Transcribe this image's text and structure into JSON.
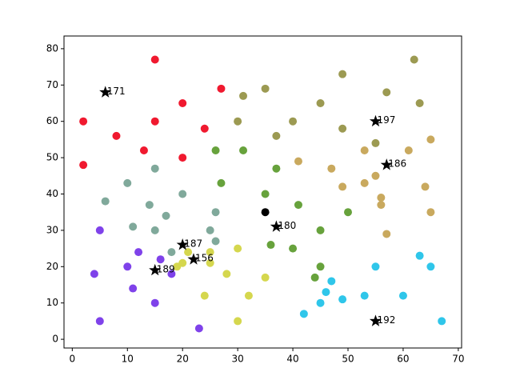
{
  "chart_data": {
    "type": "scatter",
    "xlim": [
      -1.5,
      70.6
    ],
    "ylim": [
      -2.4,
      83.5
    ],
    "xticks": [
      0,
      10,
      20,
      30,
      40,
      50,
      60,
      70
    ],
    "yticks": [
      0,
      10,
      20,
      30,
      40,
      50,
      60,
      70,
      80
    ],
    "series": [
      {
        "color": "#f0192f",
        "x": [
          15,
          27,
          20,
          2,
          15,
          24,
          8,
          13,
          20,
          2
        ],
        "y": [
          77,
          69,
          65,
          60,
          60,
          58,
          56,
          52,
          50,
          48
        ]
      },
      {
        "color": "#9c9a52",
        "x": [
          62,
          49,
          35,
          31,
          57,
          45,
          63,
          30,
          40,
          49,
          37,
          55
        ],
        "y": [
          77,
          73,
          69,
          67,
          68,
          65,
          65,
          60,
          60,
          58,
          56,
          54
        ]
      },
      {
        "color": "#c9a95e",
        "x": [
          41,
          47,
          53,
          61,
          65,
          55,
          53,
          49,
          64,
          56,
          56,
          65,
          57
        ],
        "y": [
          49,
          47,
          52,
          52,
          55,
          45,
          43,
          42,
          42,
          39,
          37,
          35,
          29
        ]
      },
      {
        "color": "#67a23c",
        "x": [
          26,
          31,
          37,
          27,
          35,
          41,
          50,
          45,
          36,
          40,
          45,
          44
        ],
        "y": [
          52,
          52,
          47,
          43,
          40,
          37,
          35,
          30,
          26,
          25,
          20,
          17
        ]
      },
      {
        "color": "#80a99b",
        "x": [
          15,
          10,
          20,
          6,
          14,
          26,
          17,
          11,
          15,
          25,
          26,
          18
        ],
        "y": [
          47,
          43,
          40,
          38,
          37,
          35,
          34,
          31,
          30,
          30,
          27,
          24
        ]
      },
      {
        "color": "#7f42ea",
        "x": [
          5,
          12,
          16,
          10,
          18,
          4,
          11,
          15,
          5,
          23
        ],
        "y": [
          30,
          24,
          22,
          20,
          18,
          18,
          14,
          10,
          5,
          3
        ]
      },
      {
        "color": "#d5d74e",
        "x": [
          21,
          20,
          19,
          25,
          25,
          30,
          28,
          35,
          32,
          24,
          30
        ],
        "y": [
          24,
          21,
          20,
          21,
          24,
          25,
          18,
          17,
          12,
          12,
          5
        ]
      },
      {
        "color": "#2fc6ea",
        "x": [
          55,
          65,
          63,
          47,
          46,
          45,
          49,
          53,
          60,
          42,
          67
        ],
        "y": [
          20,
          20,
          23,
          16,
          13,
          10,
          11,
          12,
          12,
          7,
          5
        ]
      },
      {
        "color": "#000000",
        "x": [
          35
        ],
        "y": [
          35
        ]
      },
      {
        "color": "#000000",
        "marker": "star",
        "x": [
          6,
          55,
          57,
          37,
          20,
          22,
          15,
          55
        ],
        "y": [
          68,
          60,
          48,
          31,
          26,
          22,
          19,
          5
        ],
        "labels": [
          "171",
          "197",
          "186",
          "180",
          "187",
          "156",
          "189",
          "192"
        ]
      }
    ]
  }
}
